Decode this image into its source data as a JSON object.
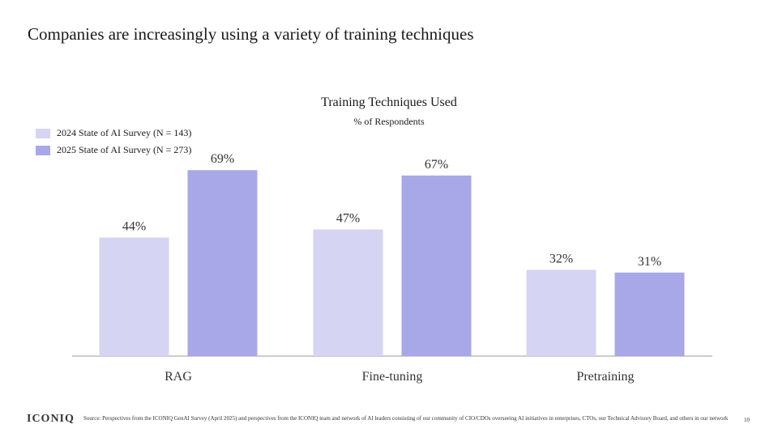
{
  "slide": {
    "title": "Companies are increasingly using a variety of  training techniques",
    "logo": "ICONIQ",
    "source": "Source: Perspectives from the ICONIQ GenAI Survey (April 2025) and perspectives from the ICONIQ team and network of AI leaders consisting of our community of CIO/CDOs overseeing AI initiatives in enterprises, CTOs, our Technical Advisory Board, and others in our network",
    "page_number": "10"
  },
  "chart_data": {
    "type": "bar",
    "title": "Training Techniques Used",
    "subtitle": "% of Respondents",
    "categories": [
      "RAG",
      "Fine-tuning",
      "Pretraining"
    ],
    "series": [
      {
        "name": "2024 State of AI Survey (N = 143)",
        "values": [
          44,
          47,
          32
        ],
        "color": "#d5d4f3"
      },
      {
        "name": "2025 State of AI Survey (N = 273)",
        "values": [
          69,
          67,
          31
        ],
        "color": "#a8a8e8"
      }
    ],
    "value_suffix": "%",
    "ylim": [
      0,
      100
    ],
    "legend_position": "top-left",
    "grid": false
  }
}
